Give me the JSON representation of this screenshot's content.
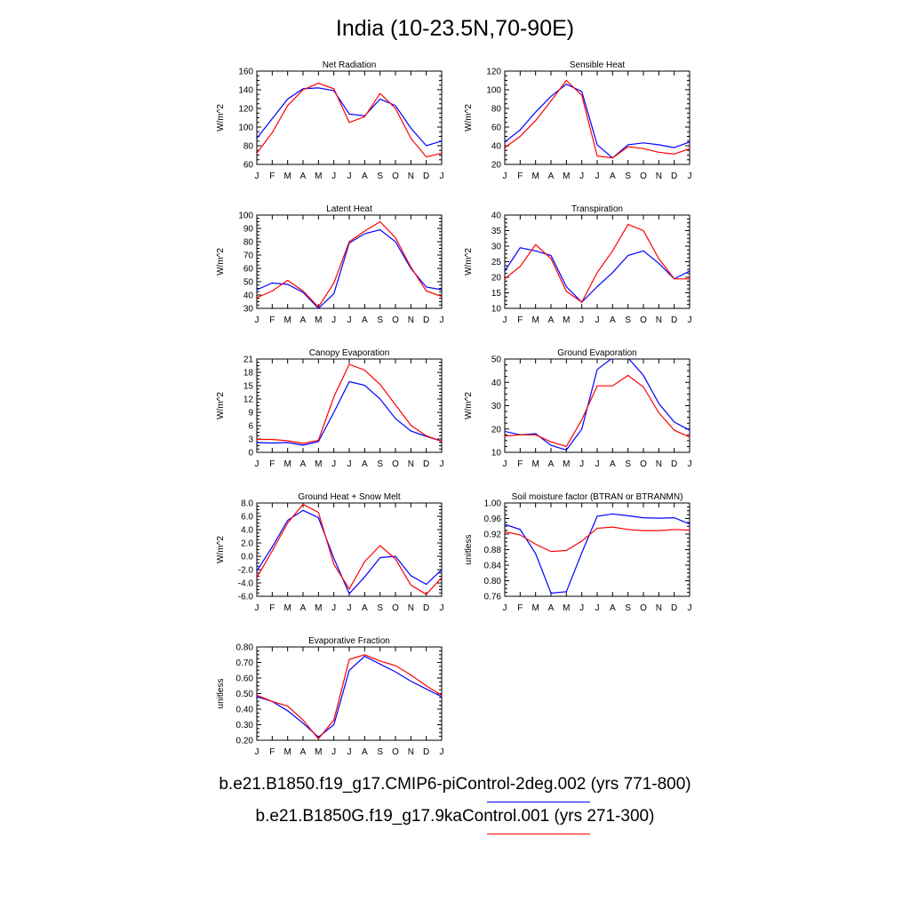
{
  "title": "India (10-23.5N,70-90E)",
  "legend": [
    {
      "label": "b.e21.B1850.f19_g17.CMIP6-piControl-2deg.002 (yrs 771-800)",
      "color": "#0000ff"
    },
    {
      "label": "b.e21.B1850G.f19_g17.9kaControl.001 (yrs 271-300)",
      "color": "#ff0000"
    }
  ],
  "chart_data": [
    {
      "type": "line",
      "title": "Net Radiation",
      "ylabel": "W/m^2",
      "categories": [
        "J",
        "F",
        "M",
        "A",
        "M",
        "J",
        "J",
        "A",
        "S",
        "O",
        "N",
        "D",
        "J"
      ],
      "ylim": [
        60,
        160
      ],
      "yticks": [
        "60",
        "80",
        "100",
        "120",
        "140",
        "160"
      ],
      "ytick_values": [
        60,
        80,
        100,
        120,
        140,
        160
      ],
      "series": [
        {
          "color": "#0000ff",
          "values": [
            88,
            109,
            130,
            141,
            142,
            139,
            114,
            112,
            130,
            123,
            99,
            80,
            85
          ]
        },
        {
          "color": "#ff0000",
          "values": [
            72,
            94,
            123,
            140,
            147,
            141,
            105,
            111,
            136,
            120,
            88,
            68,
            72
          ]
        }
      ]
    },
    {
      "type": "line",
      "title": "Sensible Heat",
      "ylabel": "W/m^2",
      "categories": [
        "J",
        "F",
        "M",
        "A",
        "M",
        "J",
        "J",
        "A",
        "S",
        "O",
        "N",
        "D",
        "J"
      ],
      "ylim": [
        20,
        120
      ],
      "yticks": [
        "20",
        "40",
        "60",
        "80",
        "100",
        "120"
      ],
      "ytick_values": [
        20,
        40,
        60,
        80,
        100,
        120
      ],
      "series": [
        {
          "color": "#0000ff",
          "values": [
            44,
            57,
            76,
            93,
            106,
            98,
            41,
            27,
            41,
            43,
            41,
            38,
            44
          ]
        },
        {
          "color": "#ff0000",
          "values": [
            38,
            50,
            67,
            88,
            110,
            94,
            29,
            27,
            39,
            37,
            33,
            31,
            37
          ]
        }
      ]
    },
    {
      "type": "line",
      "title": "Latent Heat",
      "ylabel": "W/m^2",
      "categories": [
        "J",
        "F",
        "M",
        "A",
        "M",
        "J",
        "J",
        "A",
        "S",
        "O",
        "N",
        "D",
        "J"
      ],
      "ylim": [
        30,
        100
      ],
      "yticks": [
        "30",
        "40",
        "50",
        "60",
        "70",
        "80",
        "90",
        "100"
      ],
      "ytick_values": [
        30,
        40,
        50,
        60,
        70,
        80,
        90,
        100
      ],
      "series": [
        {
          "color": "#0000ff",
          "values": [
            44,
            49,
            48,
            42,
            30,
            41,
            79,
            86,
            89,
            80,
            60,
            46,
            44
          ]
        },
        {
          "color": "#ff0000",
          "values": [
            38,
            43,
            51,
            43,
            31,
            49,
            80,
            88,
            95,
            83,
            61,
            43,
            39
          ]
        }
      ]
    },
    {
      "type": "line",
      "title": "Transpiration",
      "ylabel": "W/m^2",
      "categories": [
        "J",
        "F",
        "M",
        "A",
        "M",
        "J",
        "J",
        "A",
        "S",
        "O",
        "N",
        "D",
        "J"
      ],
      "ylim": [
        10,
        40
      ],
      "yticks": [
        "10",
        "15",
        "20",
        "25",
        "30",
        "35",
        "40"
      ],
      "ytick_values": [
        10,
        15,
        20,
        25,
        30,
        35,
        40
      ],
      "series": [
        {
          "color": "#0000ff",
          "values": [
            22,
            29.5,
            28.5,
            27,
            17,
            12,
            17,
            21.5,
            27,
            28.5,
            24.5,
            19.5,
            22
          ]
        },
        {
          "color": "#ff0000",
          "values": [
            19.5,
            23.5,
            30.5,
            26,
            15.5,
            12,
            21.5,
            28.5,
            37,
            35,
            26,
            19.5,
            19.5
          ]
        }
      ]
    },
    {
      "type": "line",
      "title": "Canopy Evaporation",
      "ylabel": "W/m^2",
      "categories": [
        "J",
        "F",
        "M",
        "A",
        "M",
        "J",
        "J",
        "A",
        "S",
        "O",
        "N",
        "D",
        "J"
      ],
      "ylim": [
        0,
        21
      ],
      "yticks": [
        "0",
        "3",
        "6",
        "9",
        "12",
        "15",
        "18",
        "21"
      ],
      "ytick_values": [
        0,
        3,
        6,
        9,
        12,
        15,
        18,
        21
      ],
      "series": [
        {
          "color": "#0000ff",
          "values": [
            2.2,
            2.1,
            2.2,
            1.6,
            2.4,
            9,
            15.9,
            15.1,
            12,
            7.6,
            4.8,
            3.6,
            2.5
          ]
        },
        {
          "color": "#ff0000",
          "values": [
            2.9,
            2.9,
            2.6,
            2,
            2.7,
            12.5,
            19.8,
            18.5,
            15.3,
            10.7,
            6.1,
            3.7,
            2.5
          ]
        }
      ]
    },
    {
      "type": "line",
      "title": "Ground Evaporation",
      "ylabel": "W/m^2",
      "categories": [
        "J",
        "F",
        "M",
        "A",
        "M",
        "J",
        "J",
        "A",
        "S",
        "O",
        "N",
        "D",
        "J"
      ],
      "ylim": [
        10,
        50
      ],
      "yticks": [
        "10",
        "20",
        "30",
        "40",
        "50"
      ],
      "ytick_values": [
        10,
        20,
        30,
        40,
        50
      ],
      "series": [
        {
          "color": "#0000ff",
          "values": [
            19,
            17.5,
            18,
            13,
            11,
            20,
            45.5,
            50.5,
            50.5,
            43,
            31,
            23,
            19.5
          ]
        },
        {
          "color": "#ff0000",
          "values": [
            17,
            17.5,
            17.5,
            14.5,
            12.5,
            24,
            38.5,
            38.5,
            43,
            38,
            27,
            19.5,
            16.5
          ]
        }
      ]
    },
    {
      "type": "line",
      "title": "Ground Heat + Snow Melt",
      "ylabel": "W/m^2",
      "categories": [
        "J",
        "F",
        "M",
        "A",
        "M",
        "J",
        "J",
        "A",
        "S",
        "O",
        "N",
        "D",
        "J"
      ],
      "ylim": [
        -6,
        8
      ],
      "yticks": [
        "-6.0",
        "-4.0",
        "-2.0",
        "0.0",
        "2.0",
        "4.0",
        "6.0",
        "8.0"
      ],
      "ytick_values": [
        -6,
        -4,
        -2,
        0,
        2,
        4,
        6,
        8
      ],
      "series": [
        {
          "color": "#0000ff",
          "values": [
            -2.2,
            1.4,
            5.4,
            6.9,
            5.8,
            -0.3,
            -5.6,
            -3.1,
            -0.2,
            0,
            -2.9,
            -4.2,
            -2
          ]
        },
        {
          "color": "#ff0000",
          "values": [
            -3.2,
            0.8,
            5,
            7.8,
            6.6,
            -1.2,
            -4.9,
            -0.8,
            1.6,
            -0.4,
            -4.3,
            -5.7,
            -3.2
          ]
        }
      ]
    },
    {
      "type": "line",
      "title": "Soil moisture factor (BTRAN or BTRANMN)",
      "ylabel": "unitless",
      "categories": [
        "J",
        "F",
        "M",
        "A",
        "M",
        "J",
        "J",
        "A",
        "S",
        "O",
        "N",
        "D",
        "J"
      ],
      "ylim": [
        0.76,
        1.0
      ],
      "yticks": [
        "0.76",
        "0.80",
        "0.84",
        "0.88",
        "0.92",
        "0.96",
        "1.00"
      ],
      "ytick_values": [
        0.76,
        0.8,
        0.84,
        0.88,
        0.92,
        0.96,
        1.0
      ],
      "series": [
        {
          "color": "#0000ff",
          "values": [
            0.945,
            0.932,
            0.87,
            0.768,
            0.772,
            0.872,
            0.966,
            0.972,
            0.967,
            0.962,
            0.961,
            0.962,
            0.946
          ]
        },
        {
          "color": "#ff0000",
          "values": [
            0.926,
            0.918,
            0.894,
            0.875,
            0.878,
            0.902,
            0.935,
            0.938,
            0.932,
            0.929,
            0.929,
            0.932,
            0.93
          ]
        }
      ]
    },
    {
      "type": "line",
      "title": "Evaporative Fraction",
      "ylabel": "unitless",
      "categories": [
        "J",
        "F",
        "M",
        "A",
        "M",
        "J",
        "J",
        "A",
        "S",
        "O",
        "N",
        "D",
        "J"
      ],
      "ylim": [
        0.2,
        0.8
      ],
      "yticks": [
        "0.20",
        "0.30",
        "0.40",
        "0.50",
        "0.60",
        "0.70",
        "0.80"
      ],
      "ytick_values": [
        0.2,
        0.3,
        0.4,
        0.5,
        0.6,
        0.7,
        0.8
      ],
      "series": [
        {
          "color": "#0000ff",
          "values": [
            0.48,
            0.45,
            0.39,
            0.31,
            0.22,
            0.3,
            0.65,
            0.74,
            0.69,
            0.64,
            0.58,
            0.53,
            0.48
          ]
        },
        {
          "color": "#ff0000",
          "values": [
            0.49,
            0.45,
            0.42,
            0.33,
            0.21,
            0.33,
            0.72,
            0.75,
            0.71,
            0.68,
            0.62,
            0.55,
            0.49
          ]
        }
      ]
    }
  ]
}
